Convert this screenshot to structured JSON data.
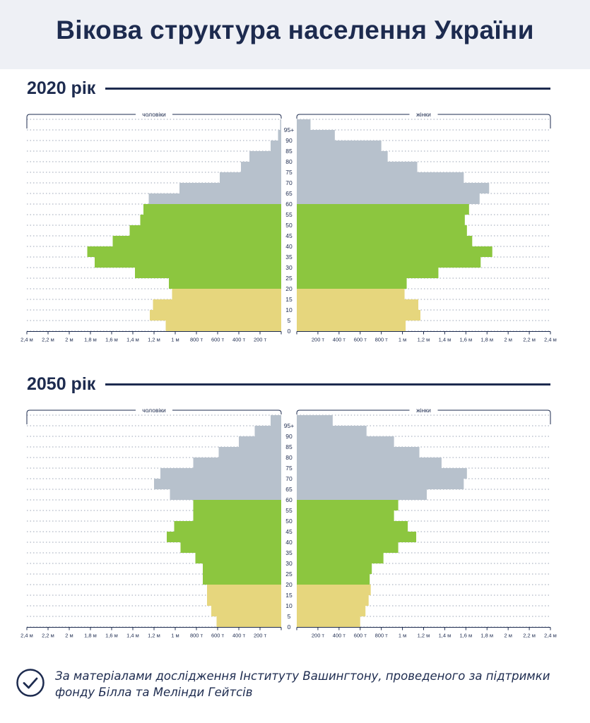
{
  "header": {
    "title": "Вікова структура населення України"
  },
  "footer": {
    "source": "За матеріалами дослідження Інституту Вашингтону, проведеного за підтримки фонду Білла та Мелінди Гейтсів",
    "check_icon": "check-circle-icon"
  },
  "colors": {
    "young": "#e6d67d",
    "working": "#8cc63f",
    "old": "#b7c1cc",
    "text": "#1d2b4f",
    "bracket": "#1d2b4f"
  },
  "chart_data": [
    {
      "type": "bar",
      "title": "2020 рік",
      "male_label": "чоловіки",
      "female_label": "жінки",
      "age_groups": [
        "0",
        "5",
        "10",
        "15",
        "20",
        "25",
        "30",
        "35",
        "40",
        "45",
        "50",
        "55",
        "60",
        "65",
        "70",
        "75",
        "80",
        "85",
        "90",
        "95+"
      ],
      "ticks_left": [
        "2,4 м",
        "2,2 м",
        "2 м",
        "1,8 м",
        "1,6 м",
        "1,4 м",
        "1,2 м",
        "1 м",
        "800 т",
        "600 т",
        "400 т",
        "200 т"
      ],
      "ticks_right": [
        "200 т",
        "400 т",
        "600 т",
        "800 т",
        "1 м",
        "1,2 м",
        "1,4 м",
        "1,6 м",
        "1,8 м",
        "2 м",
        "2,2 м",
        "2,4 м"
      ],
      "xlim": [
        0,
        2400000
      ],
      "series": [
        {
          "name": "чоловіки",
          "values": [
            1090000,
            1240000,
            1210000,
            1030000,
            1060000,
            1380000,
            1760000,
            1830000,
            1590000,
            1430000,
            1330000,
            1300000,
            1250000,
            960000,
            580000,
            380000,
            300000,
            100000,
            30000,
            10000
          ]
        },
        {
          "name": "жінки",
          "values": [
            1030000,
            1170000,
            1150000,
            1020000,
            1040000,
            1340000,
            1740000,
            1850000,
            1660000,
            1610000,
            1590000,
            1630000,
            1730000,
            1820000,
            1580000,
            1140000,
            860000,
            800000,
            360000,
            130000
          ]
        }
      ],
      "band_groups": [
        "young",
        "young",
        "young",
        "young",
        "working",
        "working",
        "working",
        "working",
        "working",
        "working",
        "working",
        "working",
        "old",
        "old",
        "old",
        "old",
        "old",
        "old",
        "old",
        "old"
      ]
    },
    {
      "type": "bar",
      "title": "2050 рік",
      "male_label": "чоловіки",
      "female_label": "жінки",
      "age_groups": [
        "0",
        "5",
        "10",
        "15",
        "20",
        "25",
        "30",
        "35",
        "40",
        "45",
        "50",
        "55",
        "60",
        "65",
        "70",
        "75",
        "80",
        "85",
        "90",
        "95+"
      ],
      "ticks_left": [
        "2,4 м",
        "2,2 м",
        "2 м",
        "1,8 м",
        "1,6 м",
        "1,4 м",
        "1,2 м",
        "1 м",
        "800 т",
        "600 т",
        "400 т",
        "200 т"
      ],
      "ticks_right": [
        "200 т",
        "400 т",
        "600 т",
        "800 т",
        "1 м",
        "1,2 м",
        "1,4 м",
        "1,6 м",
        "1,8 м",
        "2 м",
        "2,2 м",
        "2,4 м"
      ],
      "xlim": [
        0,
        2400000
      ],
      "series": [
        {
          "name": "чоловіки",
          "values": [
            610000,
            660000,
            700000,
            700000,
            740000,
            740000,
            810000,
            950000,
            1080000,
            1010000,
            830000,
            830000,
            1050000,
            1200000,
            1140000,
            830000,
            590000,
            400000,
            250000,
            100000
          ]
        },
        {
          "name": "жінки",
          "values": [
            600000,
            650000,
            680000,
            700000,
            690000,
            710000,
            820000,
            960000,
            1130000,
            1050000,
            920000,
            960000,
            1230000,
            1580000,
            1610000,
            1370000,
            1160000,
            920000,
            660000,
            340000
          ]
        }
      ],
      "band_groups": [
        "young",
        "young",
        "young",
        "young",
        "working",
        "working",
        "working",
        "working",
        "working",
        "working",
        "working",
        "working",
        "old",
        "old",
        "old",
        "old",
        "old",
        "old",
        "old",
        "old"
      ]
    }
  ]
}
